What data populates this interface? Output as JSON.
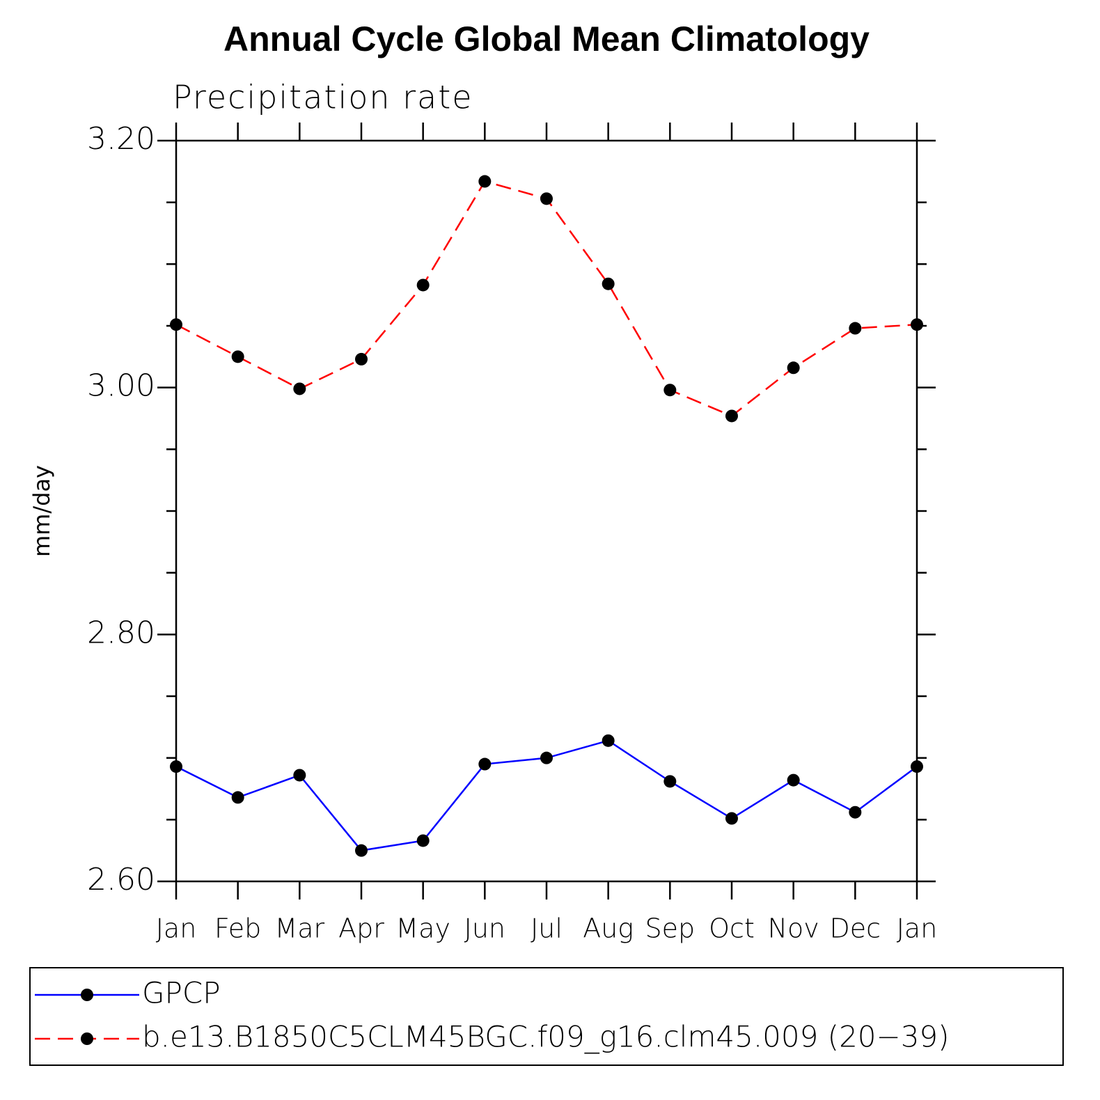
{
  "chart_data": {
    "type": "line",
    "title": "Annual Cycle Global Mean Climatology",
    "subtitle": "Precipitation rate",
    "y_label": "mm/day",
    "categories": [
      "Jan",
      "Feb",
      "Mar",
      "Apr",
      "May",
      "Jun",
      "Jul",
      "Aug",
      "Sep",
      "Oct",
      "Nov",
      "Dec",
      "Jan"
    ],
    "series": [
      {
        "name": "GPCP",
        "color": "#0000ff",
        "line_style": "solid",
        "values": [
          2.693,
          2.668,
          2.686,
          2.625,
          2.633,
          2.695,
          2.7,
          2.714,
          2.681,
          2.651,
          2.682,
          2.656,
          2.693
        ]
      },
      {
        "name": "b.e13.B1850C5CLM45BGC.f09_g16.clm45.009 (20−39)",
        "color": "#ff0000",
        "line_style": "dashed",
        "values": [
          3.051,
          3.025,
          2.999,
          3.023,
          3.083,
          3.167,
          3.153,
          3.084,
          2.998,
          2.977,
          3.016,
          3.048,
          3.051
        ]
      }
    ],
    "ylim": [
      2.6,
      3.2
    ],
    "yticks": [
      {
        "value": 2.6,
        "label": "2.60"
      },
      {
        "value": 2.8,
        "label": "2.80"
      },
      {
        "value": 3.0,
        "label": "3.00"
      },
      {
        "value": 3.2,
        "label": "3.20"
      }
    ],
    "yminorticks": [
      2.65,
      2.7,
      2.75,
      2.85,
      2.9,
      2.95,
      3.05,
      3.1,
      3.15
    ],
    "marker_color": "#000000",
    "legend": "bottom"
  }
}
